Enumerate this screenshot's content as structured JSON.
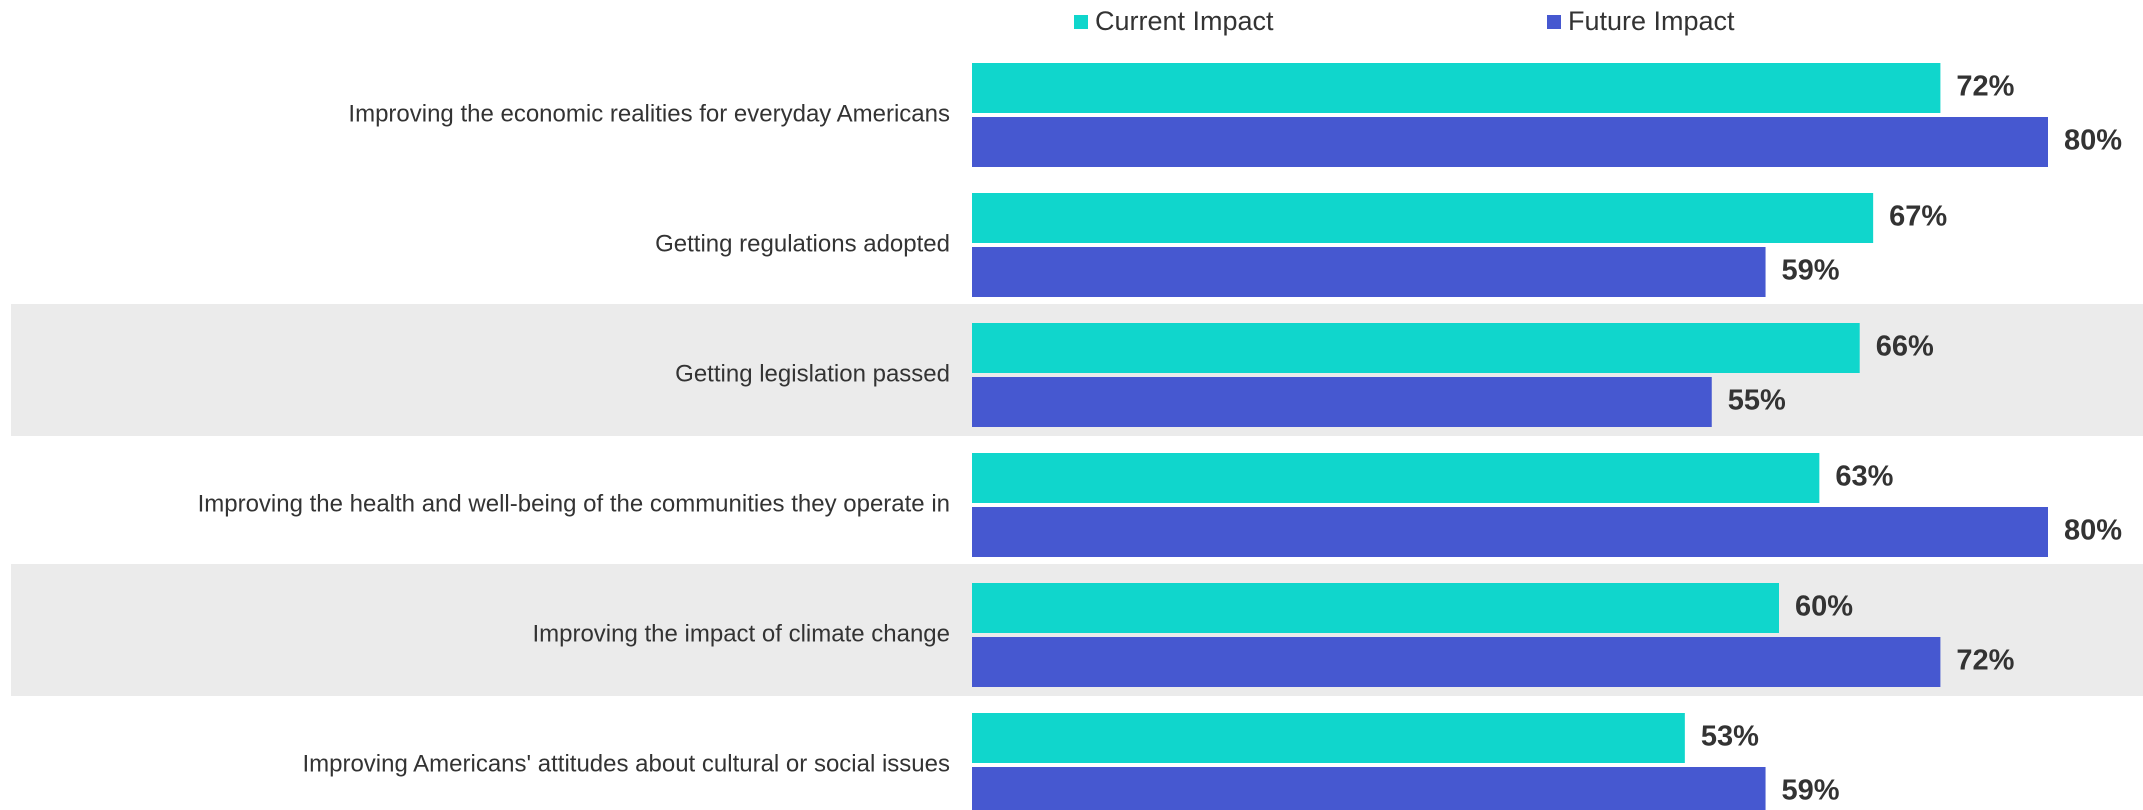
{
  "chart_data": {
    "type": "bar",
    "orientation": "horizontal",
    "categories": [
      "Improving the economic realities for everyday Americans",
      "Getting regulations adopted",
      "Getting legislation passed",
      "Improving the health and well-being of the communities they operate in",
      "Improving the impact of climate change",
      "Improving Americans' attitudes about cultural or social issues"
    ],
    "series": [
      {
        "name": "Current Impact",
        "color": "#10d6cc",
        "values": [
          72,
          67,
          66,
          63,
          60,
          53
        ],
        "value_labels": [
          "72%",
          "67%",
          "66%",
          "63%",
          "60%",
          "53%"
        ]
      },
      {
        "name": "Future Impact",
        "color": "#4658d0",
        "values": [
          80,
          59,
          55,
          80,
          72,
          59
        ],
        "value_labels": [
          "80%",
          "59%",
          "55%",
          "80%",
          "72%",
          "59%"
        ]
      }
    ],
    "legend": "top"
  }
}
